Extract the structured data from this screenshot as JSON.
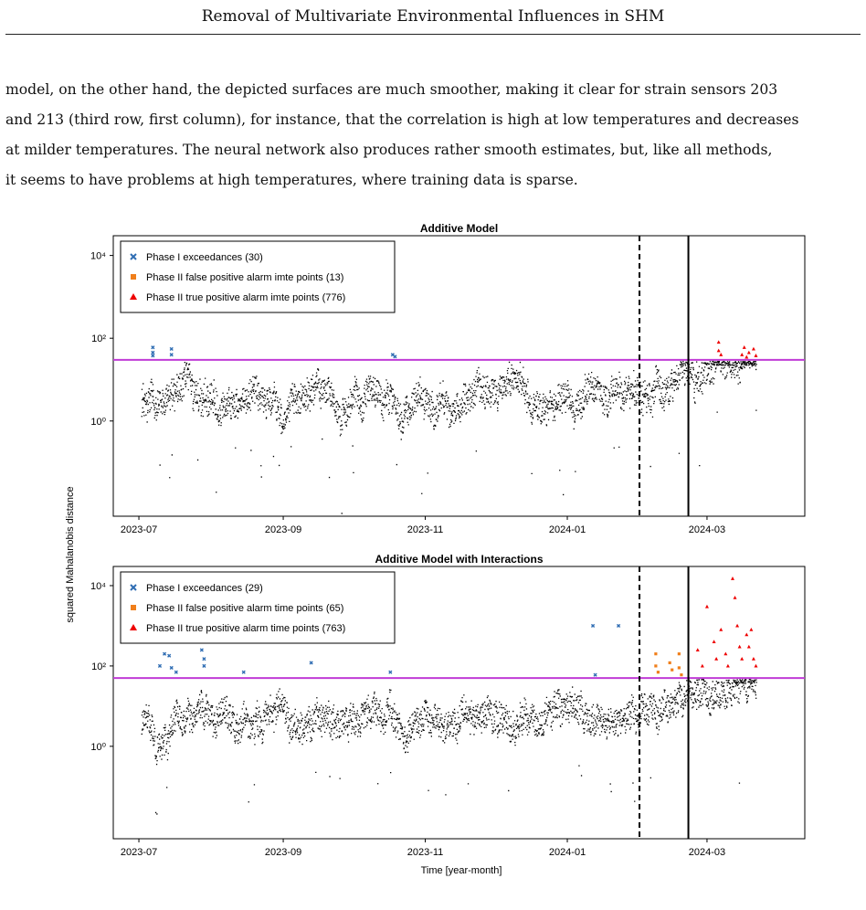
{
  "header": {
    "title": "Removal of Multivariate Environmental Influences in SHM"
  },
  "paragraph": {
    "lines": [
      "model, on the other hand, the depicted surfaces are much smoother, making it clear for strain sensors 203",
      "and 213 (third row, first column), for instance, that the correlation is high at low temperatures and decreases",
      "at milder temperatures. The neural network also produces rather smooth estimates, but, like all methods,",
      "it seems to have problems at high temperatures, where training data is sparse."
    ]
  },
  "figure": {
    "ylabel": "squared Mahalanobis distance",
    "xlabel": "Time [year-month]"
  },
  "chart_data": [
    {
      "type": "scatter",
      "title": "Additive Model",
      "yscale": "log",
      "ytick_labels": [
        "10⁰",
        "10²",
        "10⁴"
      ],
      "ytick_values": [
        1,
        100,
        10000
      ],
      "xtick_labels": [
        "2023-07",
        "2023-09",
        "2023-11",
        "2024-01",
        "2024-03"
      ],
      "xtick_dates": [
        "2023-07-01",
        "2023-09-01",
        "2023-11-01",
        "2024-01-01",
        "2024-03-01"
      ],
      "xlim": [
        "2023-06-20",
        "2024-04-12"
      ],
      "ylim": [
        0.005,
        30000
      ],
      "threshold": 30,
      "threshold_color": "#c03bd6",
      "phase_boundary_dashed": "2024-02-01",
      "phase_boundary_solid": "2024-02-22",
      "legend_position": "top-left",
      "series": [
        {
          "name": "Phase I exceedances (30)",
          "marker": "x",
          "color": "#2f6db3",
          "points": [
            [
              "2023-07-07",
              60
            ],
            [
              "2023-07-07",
              45
            ],
            [
              "2023-07-07",
              38
            ],
            [
              "2023-07-15",
              55
            ],
            [
              "2023-07-15",
              40
            ],
            [
              "2023-10-18",
              40
            ],
            [
              "2023-10-19",
              36
            ]
          ]
        },
        {
          "name": "Phase II false positive alarm imte points (13)",
          "marker": "square",
          "color": "#f07f1b",
          "points": []
        },
        {
          "name": "Phase II true positive alarm imte points (776)",
          "marker": "triangle",
          "color": "#ee0000",
          "points": [
            [
              "2024-03-06",
              80
            ],
            [
              "2024-03-06",
              50
            ],
            [
              "2024-03-07",
              40
            ],
            [
              "2024-03-16",
              40
            ],
            [
              "2024-03-17",
              60
            ],
            [
              "2024-03-18",
              35
            ],
            [
              "2024-03-19",
              45
            ],
            [
              "2024-03-21",
              55
            ],
            [
              "2024-03-22",
              38
            ]
          ]
        }
      ]
    },
    {
      "type": "scatter",
      "title": "Additive Model with Interactions",
      "yscale": "log",
      "ytick_labels": [
        "10⁰",
        "10²",
        "10⁴"
      ],
      "ytick_values": [
        1,
        100,
        10000
      ],
      "xtick_labels": [
        "2023-07",
        "2023-09",
        "2023-11",
        "2024-01",
        "2024-03"
      ],
      "xtick_dates": [
        "2023-07-01",
        "2023-09-01",
        "2023-11-01",
        "2024-01-01",
        "2024-03-01"
      ],
      "xlim": [
        "2023-06-20",
        "2024-04-12"
      ],
      "ylim": [
        0.005,
        30000
      ],
      "threshold": 50,
      "threshold_color": "#c03bd6",
      "phase_boundary_dashed": "2024-02-01",
      "phase_boundary_solid": "2024-02-22",
      "legend_position": "top-left",
      "series": [
        {
          "name": "Phase I exceedances (29)",
          "marker": "x",
          "color": "#2f6db3",
          "points": [
            [
              "2023-07-10",
              100
            ],
            [
              "2023-07-12",
              200
            ],
            [
              "2023-07-13",
              500
            ],
            [
              "2023-07-14",
              180
            ],
            [
              "2023-07-15",
              90
            ],
            [
              "2023-07-17",
              70
            ],
            [
              "2023-07-28",
              400
            ],
            [
              "2023-07-28",
              250
            ],
            [
              "2023-07-29",
              150
            ],
            [
              "2023-07-29",
              100
            ],
            [
              "2023-08-15",
              70
            ],
            [
              "2023-09-13",
              120
            ],
            [
              "2023-10-17",
              70
            ],
            [
              "2024-01-12",
              1000
            ],
            [
              "2024-01-13",
              60
            ],
            [
              "2024-01-23",
              1000
            ]
          ]
        },
        {
          "name": "Phase II false positive alarm time points (65)",
          "marker": "square",
          "color": "#f07f1b",
          "points": [
            [
              "2024-02-08",
              200
            ],
            [
              "2024-02-08",
              100
            ],
            [
              "2024-02-09",
              70
            ],
            [
              "2024-02-14",
              120
            ],
            [
              "2024-02-15",
              80
            ],
            [
              "2024-02-18",
              200
            ],
            [
              "2024-02-18",
              90
            ],
            [
              "2024-02-19",
              60
            ]
          ]
        },
        {
          "name": "Phase II true positive alarm time points (763)",
          "marker": "triangle",
          "color": "#ee0000",
          "points": [
            [
              "2024-02-26",
              250
            ],
            [
              "2024-02-28",
              100
            ],
            [
              "2024-03-01",
              3000
            ],
            [
              "2024-03-04",
              400
            ],
            [
              "2024-03-05",
              150
            ],
            [
              "2024-03-07",
              800
            ],
            [
              "2024-03-09",
              200
            ],
            [
              "2024-03-10",
              100
            ],
            [
              "2024-03-12",
              15000
            ],
            [
              "2024-03-13",
              5000
            ],
            [
              "2024-03-14",
              1000
            ],
            [
              "2024-03-15",
              300
            ],
            [
              "2024-03-16",
              150
            ],
            [
              "2024-03-18",
              600
            ],
            [
              "2024-03-19",
              300
            ],
            [
              "2024-03-20",
              800
            ],
            [
              "2024-03-21",
              150
            ],
            [
              "2024-03-22",
              100
            ]
          ]
        }
      ]
    }
  ]
}
